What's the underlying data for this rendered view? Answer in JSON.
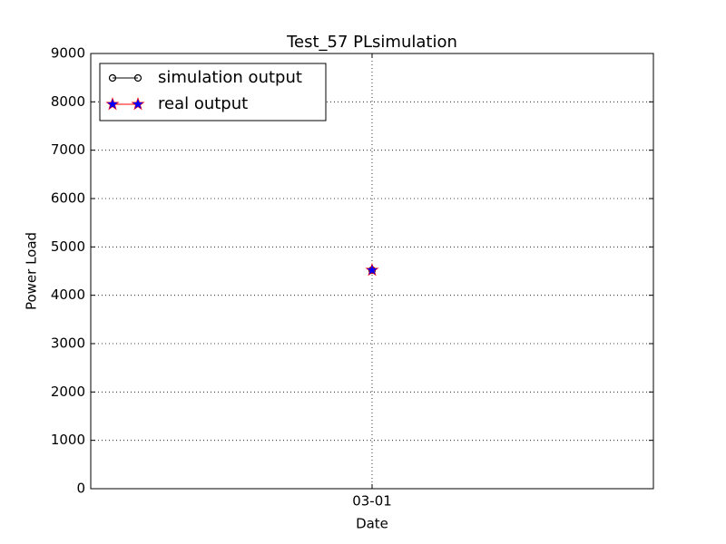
{
  "chart_data": {
    "type": "line",
    "title": "Test_57 PLsimulation",
    "xlabel": "Date",
    "ylabel": "Power Load",
    "categories": [
      "03-01"
    ],
    "series": [
      {
        "name": "simulation output",
        "color": "#000000",
        "marker": "circle",
        "values": [
          4520
        ]
      },
      {
        "name": "real output",
        "color": "#ff0000",
        "marker": "star",
        "marker_color": "#0000ff",
        "values": [
          4520
        ]
      }
    ],
    "ylim": [
      0,
      9000
    ],
    "yticks": [
      0,
      1000,
      2000,
      3000,
      4000,
      5000,
      6000,
      7000,
      8000,
      9000
    ],
    "grid": true,
    "legend": "upper left"
  }
}
